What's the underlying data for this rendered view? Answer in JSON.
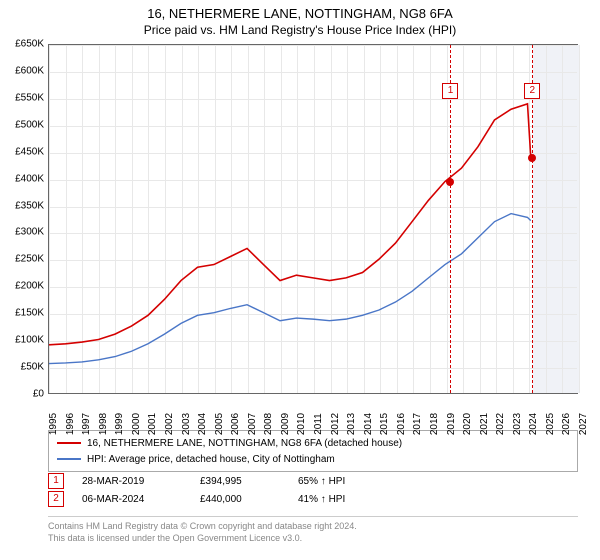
{
  "title": "16, NETHERMERE LANE, NOTTINGHAM, NG8 6FA",
  "subtitle": "Price paid vs. HM Land Registry's House Price Index (HPI)",
  "chart": {
    "type": "line",
    "background_color": "#ffffff",
    "grid_color": "#e8e8e8",
    "border_color": "#666666",
    "label_fontsize": 10,
    "ylim": [
      0,
      650000
    ],
    "ytick_step": 50000,
    "yticks_labels": [
      "£0",
      "£50K",
      "£100K",
      "£150K",
      "£200K",
      "£250K",
      "£300K",
      "£350K",
      "£400K",
      "£450K",
      "£500K",
      "£550K",
      "£600K",
      "£650K"
    ],
    "xlim": [
      1995,
      2027
    ],
    "xticks": [
      1995,
      1996,
      1997,
      1998,
      1999,
      2000,
      2001,
      2002,
      2003,
      2004,
      2005,
      2006,
      2007,
      2008,
      2009,
      2010,
      2011,
      2012,
      2013,
      2014,
      2015,
      2016,
      2017,
      2018,
      2019,
      2020,
      2021,
      2022,
      2023,
      2024,
      2025,
      2026,
      2027
    ],
    "shaded_region": {
      "start": 2024.2,
      "end": 2027,
      "color": "#f0f2f7"
    },
    "series": [
      {
        "name": "16, NETHERMERE LANE, NOTTINGHAM, NG8 6FA (detached house)",
        "color": "#d40000",
        "line_width": 1.6,
        "years": [
          1995,
          1996,
          1997,
          1998,
          1999,
          2000,
          2001,
          2002,
          2003,
          2004,
          2005,
          2006,
          2007,
          2008,
          2009,
          2010,
          2011,
          2012,
          2013,
          2014,
          2015,
          2016,
          2017,
          2018,
          2019,
          2020,
          2021,
          2022,
          2023,
          2024,
          2024.2,
          2024.4
        ],
        "values": [
          90000,
          92000,
          95000,
          100000,
          110000,
          125000,
          145000,
          175000,
          210000,
          235000,
          240000,
          255000,
          270000,
          240000,
          210000,
          220000,
          215000,
          210000,
          215000,
          225000,
          250000,
          280000,
          320000,
          360000,
          395000,
          420000,
          460000,
          510000,
          530000,
          540000,
          440000,
          445000
        ]
      },
      {
        "name": "HPI: Average price, detached house, City of Nottingham",
        "color": "#4a76c7",
        "line_width": 1.4,
        "years": [
          1995,
          1996,
          1997,
          1998,
          1999,
          2000,
          2001,
          2002,
          2003,
          2004,
          2005,
          2006,
          2007,
          2008,
          2009,
          2010,
          2011,
          2012,
          2013,
          2014,
          2015,
          2016,
          2017,
          2018,
          2019,
          2020,
          2021,
          2022,
          2023,
          2024,
          2024.2
        ],
        "values": [
          55000,
          56000,
          58000,
          62000,
          68000,
          78000,
          92000,
          110000,
          130000,
          145000,
          150000,
          158000,
          165000,
          150000,
          135000,
          140000,
          138000,
          135000,
          138000,
          145000,
          155000,
          170000,
          190000,
          215000,
          240000,
          260000,
          290000,
          320000,
          335000,
          328000,
          322000
        ]
      }
    ],
    "events": [
      {
        "n": "1",
        "year": 2019.24,
        "value": 394995,
        "date": "28-MAR-2019",
        "price": "£394,995",
        "pct": "65% ↑ HPI",
        "box_border": "#d40000",
        "marker_fill": "#d40000"
      },
      {
        "n": "2",
        "year": 2024.18,
        "value": 440000,
        "date": "06-MAR-2024",
        "price": "£440,000",
        "pct": "41% ↑ HPI",
        "box_border": "#d40000",
        "marker_fill": "#d40000"
      }
    ],
    "event_line_color": "#d40000"
  },
  "legend": {
    "items": [
      {
        "color": "#d40000",
        "label": "16, NETHERMERE LANE, NOTTINGHAM, NG8 6FA (detached house)"
      },
      {
        "color": "#4a76c7",
        "label": "HPI: Average price, detached house, City of Nottingham"
      }
    ]
  },
  "footer": {
    "line1": "Contains HM Land Registry data © Crown copyright and database right 2024.",
    "line2": "This data is licensed under the Open Government Licence v3.0."
  }
}
